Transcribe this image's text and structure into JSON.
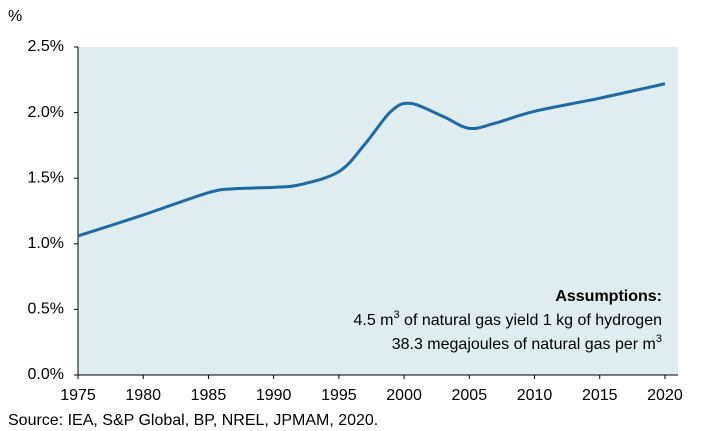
{
  "chart_data": {
    "type": "line",
    "y_axis_label": "%",
    "x": [
      1975,
      1980,
      1985,
      1987,
      1990,
      1992,
      1995,
      1997,
      1999,
      2000.5,
      2003,
      2005,
      2007,
      2010,
      2015,
      2020
    ],
    "series": [
      {
        "color": "#1f6aa5",
        "values": [
          1.06,
          1.22,
          1.39,
          1.42,
          1.43,
          1.45,
          1.55,
          1.76,
          2.01,
          2.07,
          1.97,
          1.88,
          1.92,
          2.01,
          2.11,
          2.22
        ]
      }
    ],
    "xlim": [
      1975,
      2021
    ],
    "xticks": [
      1975,
      1980,
      1985,
      1990,
      1995,
      2000,
      2005,
      2010,
      2015,
      2020
    ],
    "ylim": [
      0,
      2.5
    ],
    "yticks": [
      {
        "value": 0,
        "label": "0.0%"
      },
      {
        "value": 0.5,
        "label": "0.5%"
      },
      {
        "value": 1,
        "label": "1.0%"
      },
      {
        "value": 1.5,
        "label": "1.5%"
      },
      {
        "value": 2,
        "label": "2.0%"
      },
      {
        "value": 2.5,
        "label": "2.5%"
      }
    ],
    "plot_background": "#dfedf1",
    "annotation": {
      "title": "Assumptions:",
      "lines": [
        {
          "text": "4.5 m",
          "sup": "3",
          "rest": " of natural gas yield 1 kg of hydrogen"
        },
        {
          "text": "38.3 megajoules of natural gas per m",
          "sup": "3"
        }
      ]
    },
    "source": "Source: IEA, S&P Global, BP, NREL, JPMAM, 2020."
  }
}
